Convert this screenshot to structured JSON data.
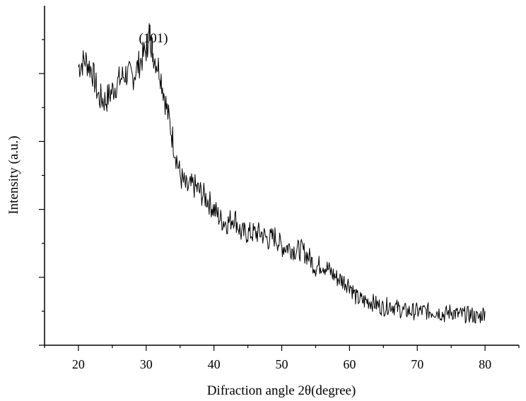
{
  "chart_data": {
    "type": "line",
    "title": "",
    "xlabel": "Difraction angle 2θ(degree)",
    "ylabel": "Intensity (a.u.)",
    "xlim": [
      15,
      85
    ],
    "ylim": [
      0,
      10
    ],
    "x_ticks": [
      "20",
      "30",
      "40",
      "50",
      "60",
      "70",
      "80"
    ],
    "y_tick_labels": "none",
    "grid": false,
    "legend": "none",
    "line_color": "#000000",
    "annotations": [
      {
        "text": "(101)",
        "x": 30.5,
        "y": 9.3
      }
    ],
    "series": [
      {
        "x": [
          20,
          21,
          22,
          23,
          24,
          25,
          26,
          27,
          28,
          29,
          30,
          30.5,
          31,
          32,
          33,
          34,
          35,
          36,
          37,
          38,
          39,
          40,
          41,
          42,
          43,
          44,
          45,
          46,
          47,
          48,
          49,
          50,
          51,
          52,
          53,
          54,
          55,
          56,
          57,
          58,
          59,
          60,
          61,
          62,
          63,
          64,
          65,
          66,
          67,
          68,
          69,
          70,
          71,
          72,
          73,
          74,
          75,
          76,
          77,
          78,
          79,
          80
        ],
        "y": [
          8.2,
          8.4,
          8.1,
          7.3,
          7.2,
          7.5,
          7.8,
          8.0,
          7.9,
          8.3,
          8.7,
          9.2,
          8.6,
          8.1,
          7.0,
          6.0,
          5.0,
          4.6,
          4.7,
          4.5,
          4.3,
          4.0,
          3.7,
          3.6,
          3.8,
          3.3,
          3.3,
          3.3,
          3.3,
          3.1,
          3.2,
          2.9,
          2.9,
          2.8,
          2.8,
          2.6,
          2.3,
          2.4,
          2.2,
          2.0,
          1.9,
          1.8,
          1.4,
          1.3,
          1.3,
          1.2,
          1.1,
          1.2,
          1.1,
          1.0,
          1.0,
          1.0,
          1.0,
          1.0,
          1.0,
          0.9,
          1.0,
          0.9,
          0.9,
          0.9,
          0.8,
          1.0
        ]
      }
    ]
  }
}
